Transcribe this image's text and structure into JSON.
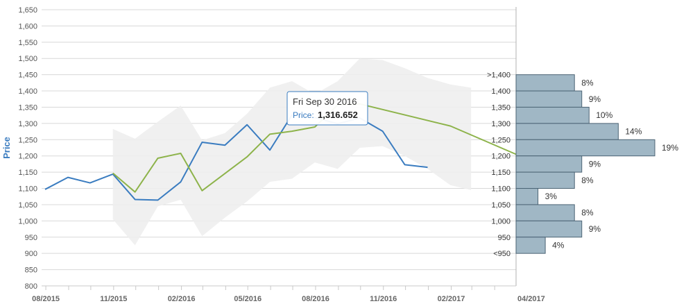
{
  "chart_data": {
    "type": "line",
    "ylabel": "Price",
    "ylim": [
      800,
      1650
    ],
    "yticks": [
      "800",
      "850",
      "900",
      "950",
      "1,000",
      "1,050",
      "1,100",
      "1,150",
      "1,200",
      "1,250",
      "1,300",
      "1,350",
      "1,400",
      "1,450",
      "1,500",
      "1,550",
      "1,600",
      "1,650"
    ],
    "xlim": [
      "2015-07-31",
      "2017-04-30"
    ],
    "xticks": [
      {
        "date": "2015-08-01",
        "label": "08/2015"
      },
      {
        "date": "2015-11-01",
        "label": "11/2015"
      },
      {
        "date": "2016-02-01",
        "label": "02/2016"
      },
      {
        "date": "2016-05-01",
        "label": "05/2016"
      },
      {
        "date": "2016-08-01",
        "label": "08/2016"
      },
      {
        "date": "2016-11-01",
        "label": "11/2016"
      },
      {
        "date": "2017-02-01",
        "label": "02/2017"
      },
      {
        "date": "2017-04-30",
        "label": "04/2017"
      }
    ],
    "grid": true,
    "series": [
      {
        "key": "price",
        "name": "Price",
        "color": "#3a7cc0",
        "points": [
          [
            "2015-07-31",
            1097
          ],
          [
            "2015-08-31",
            1134
          ],
          [
            "2015-09-30",
            1117
          ],
          [
            "2015-10-31",
            1144
          ],
          [
            "2015-11-30",
            1066
          ],
          [
            "2015-12-31",
            1064
          ],
          [
            "2016-01-31",
            1120
          ],
          [
            "2016-02-29",
            1242
          ],
          [
            "2016-03-31",
            1233
          ],
          [
            "2016-04-30",
            1296
          ],
          [
            "2016-05-31",
            1218
          ],
          [
            "2016-06-30",
            1326
          ],
          [
            "2016-07-31",
            1318
          ],
          [
            "2016-08-31",
            1299
          ],
          [
            "2016-09-30",
            1316.652
          ],
          [
            "2016-10-31",
            1276
          ],
          [
            "2016-11-30",
            1173
          ],
          [
            "2016-12-31",
            1165
          ]
        ]
      },
      {
        "key": "forecast",
        "color": "#8db34a",
        "points": [
          [
            "2015-10-31",
            1147
          ],
          [
            "2015-11-30",
            1089
          ],
          [
            "2015-12-31",
            1193
          ],
          [
            "2016-01-31",
            1208
          ],
          [
            "2016-02-29",
            1093
          ],
          [
            "2016-04-30",
            1197
          ],
          [
            "2016-05-31",
            1267
          ],
          [
            "2016-06-30",
            1276
          ],
          [
            "2016-07-31",
            1289
          ],
          [
            "2016-08-31",
            1357
          ],
          [
            "2016-09-30",
            1360
          ],
          [
            "2017-01-31",
            1292
          ],
          [
            "2017-04-30",
            1205
          ]
        ]
      }
    ],
    "band": {
      "color": "#eeeeee",
      "points": [
        [
          "2015-10-31",
          1005,
          1283
        ],
        [
          "2015-11-30",
          925,
          1253
        ],
        [
          "2015-12-31",
          1045,
          1305
        ],
        [
          "2016-01-31",
          1065,
          1355
        ],
        [
          "2016-02-29",
          953,
          1248
        ],
        [
          "2016-03-31",
          1010,
          1270
        ],
        [
          "2016-04-30",
          1060,
          1330
        ],
        [
          "2016-05-31",
          1120,
          1410
        ],
        [
          "2016-06-30",
          1130,
          1430
        ],
        [
          "2016-07-31",
          1180,
          1390
        ],
        [
          "2016-08-31",
          1160,
          1430
        ],
        [
          "2016-09-30",
          1225,
          1500
        ],
        [
          "2016-10-31",
          1230,
          1495
        ],
        [
          "2016-11-30",
          1200,
          1470
        ],
        [
          "2016-12-31",
          1160,
          1440
        ],
        [
          "2017-01-31",
          1110,
          1420
        ],
        [
          "2017-02-28",
          1095,
          1410
        ]
      ]
    },
    "distribution": {
      "color": "#a0b7c5",
      "bins": [
        {
          "label": ">1,400",
          "lo": 1400,
          "hi": 1450,
          "pct": 8,
          "pct_label": "8%"
        },
        {
          "label": "1,400",
          "lo": 1350,
          "hi": 1400,
          "pct": 9,
          "pct_label": "9%"
        },
        {
          "label": "1,350",
          "lo": 1300,
          "hi": 1350,
          "pct": 10,
          "pct_label": "10%"
        },
        {
          "label": "1,300",
          "lo": 1250,
          "hi": 1300,
          "pct": 14,
          "pct_label": "14%"
        },
        {
          "label": "1,250",
          "lo": 1200,
          "hi": 1250,
          "pct": 19,
          "pct_label": "19%"
        },
        {
          "label": "1,200",
          "lo": 1150,
          "hi": 1200,
          "pct": 9,
          "pct_label": "9%"
        },
        {
          "label": "1,150",
          "lo": 1100,
          "hi": 1150,
          "pct": 8,
          "pct_label": "8%"
        },
        {
          "label": "1,100",
          "lo": 1050,
          "hi": 1100,
          "pct": 3,
          "pct_label": "3%"
        },
        {
          "label": "1,050",
          "lo": 1000,
          "hi": 1050,
          "pct": 8,
          "pct_label": "8%"
        },
        {
          "label": "1,000",
          "lo": 950,
          "hi": 1000,
          "pct": 9,
          "pct_label": "9%"
        },
        {
          "label": "950",
          "lo": 900,
          "hi": 950,
          "pct": 4,
          "pct_label": "4%"
        },
        {
          "label": "<950",
          "lo": 850,
          "hi": 900,
          "pct": null,
          "pct_label": ""
        }
      ]
    },
    "tooltip": {
      "date": "Fri Sep 30 2016",
      "series_name": "Price:",
      "value": "1,316.652",
      "anchor_date": "2016-09-30",
      "anchor_value": 1316.652
    }
  }
}
